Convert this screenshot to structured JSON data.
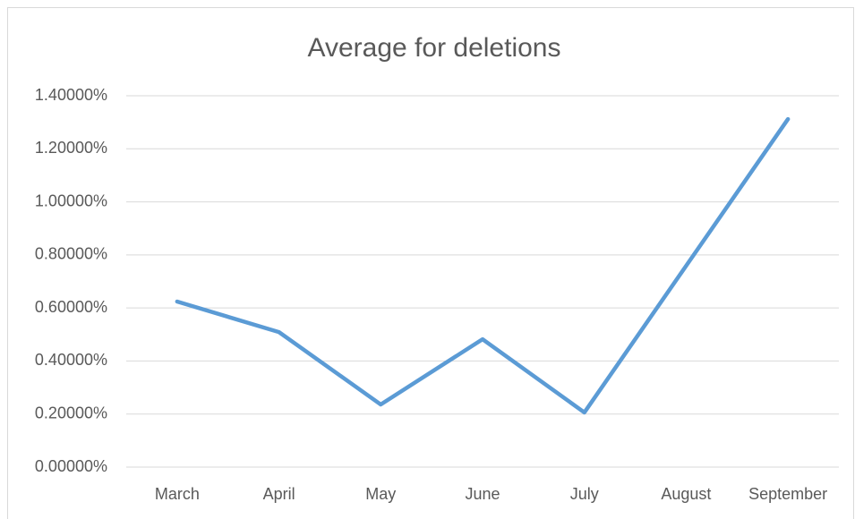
{
  "chart_data": {
    "type": "line",
    "title": "Average for deletions",
    "categories": [
      "March",
      "April",
      "May",
      "June",
      "July",
      "August",
      "September"
    ],
    "series": [
      {
        "name": "Average for deletions",
        "color": "#5b9bd5",
        "values": [
          0.624,
          0.509,
          0.236,
          0.482,
          0.206,
          0.759,
          1.312
        ]
      }
    ],
    "ylim": [
      0,
      1.4
    ],
    "yticks": [
      {
        "value": 0,
        "label": "0.00000%"
      },
      {
        "value": 0.2,
        "label": "0.20000%"
      },
      {
        "value": 0.4,
        "label": "0.40000%"
      },
      {
        "value": 0.6,
        "label": "0.60000%"
      },
      {
        "value": 0.8,
        "label": "0.80000%"
      },
      {
        "value": 1.0,
        "label": "1.00000%"
      },
      {
        "value": 1.2,
        "label": "1.20000%"
      },
      {
        "value": 1.4,
        "label": "1.40000%"
      }
    ],
    "grid": true
  }
}
